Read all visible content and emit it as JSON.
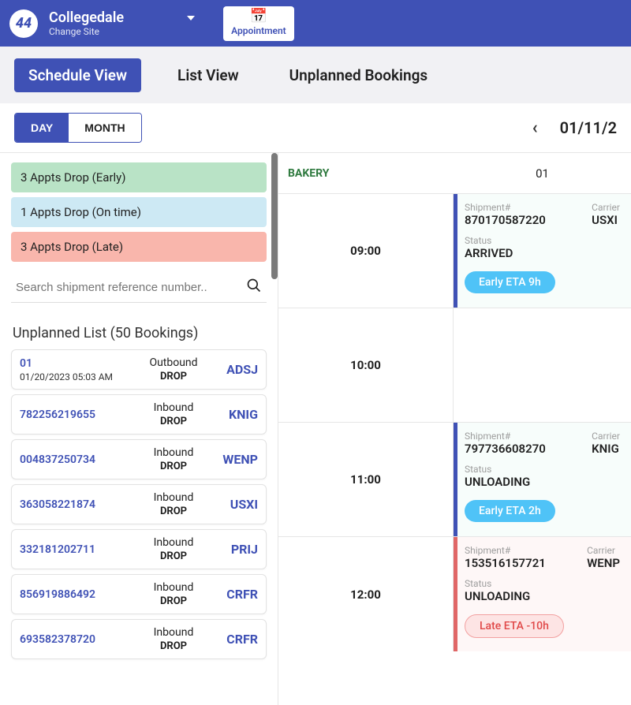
{
  "header": {
    "logo_text": "44",
    "site_name": "Collegedale",
    "site_sub": "Change Site",
    "appointment_label": "Appointment"
  },
  "subnav": {
    "schedule_view": "Schedule View",
    "list_view": "List View",
    "unplanned_bookings": "Unplanned Bookings"
  },
  "filter": {
    "day_label": "DAY",
    "month_label": "MONTH",
    "date_display": "01/11/2"
  },
  "sidebar": {
    "chips": {
      "early": "3 Appts Drop (Early)",
      "ontime": "1 Appts Drop (On time)",
      "late": "3 Appts Drop (Late)"
    },
    "search_placeholder": "Search shipment reference number..",
    "unplanned_title": "Unplanned List (50 Bookings)",
    "cards": [
      {
        "ref": "01",
        "sub": "01/20/2023 05:03 AM",
        "dir": "Outbound",
        "drop": "DROP",
        "carrier": "ADSJ"
      },
      {
        "ref": "782256219655",
        "sub": "",
        "dir": "Inbound",
        "drop": "DROP",
        "carrier": "KNIG"
      },
      {
        "ref": "004837250734",
        "sub": "",
        "dir": "Inbound",
        "drop": "DROP",
        "carrier": "WENP"
      },
      {
        "ref": "363058221874",
        "sub": "",
        "dir": "Inbound",
        "drop": "DROP",
        "carrier": "USXI"
      },
      {
        "ref": "332181202711",
        "sub": "",
        "dir": "Inbound",
        "drop": "DROP",
        "carrier": "PRIJ"
      },
      {
        "ref": "856919886492",
        "sub": "",
        "dir": "Inbound",
        "drop": "DROP",
        "carrier": "CRFR"
      },
      {
        "ref": "693582378720",
        "sub": "",
        "dir": "Inbound",
        "drop": "DROP",
        "carrier": "CRFR"
      }
    ]
  },
  "schedule": {
    "column_left_label": "BAKERY",
    "column_right_label": "01",
    "labels": {
      "shipment": "Shipment#",
      "carrier": "Carrier",
      "status": "Status"
    },
    "rows": [
      {
        "time": "09:00",
        "slot": {
          "bg": "early-bg",
          "bar": "blue",
          "shipment": "870170587220",
          "carrier": "USXI",
          "status": "ARRIVED",
          "eta_text": "Early ETA 9h",
          "eta_class": "early"
        }
      },
      {
        "time": "10:00",
        "slot": null
      },
      {
        "time": "11:00",
        "slot": {
          "bg": "early-bg",
          "bar": "blue",
          "shipment": "797736608270",
          "carrier": "KNIG",
          "status": "UNLOADING",
          "eta_text": "Early ETA 2h",
          "eta_class": "early"
        }
      },
      {
        "time": "12:00",
        "slot": {
          "bg": "late-bg",
          "bar": "red",
          "shipment": "153516157721",
          "carrier": "WENP",
          "status": "UNLOADING",
          "eta_text": "Late ETA -10h",
          "eta_class": "late"
        }
      }
    ]
  },
  "colors": {
    "primary": "#3f51b5",
    "chip_early": "#b9e3c6",
    "chip_ontime": "#cde9f4",
    "chip_late": "#f9b6ac",
    "eta_early_bg": "#4fc3f7",
    "eta_late_bg": "#fde4e4",
    "eta_late_border": "#f2a0a0",
    "eta_late_text": "#e04848"
  }
}
